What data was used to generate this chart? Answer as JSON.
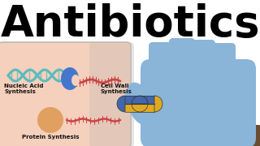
{
  "title": "Antibiotics",
  "title_fontsize": 38,
  "title_color": "#000000",
  "background_color": "#ffffff",
  "cell_bg_color": "#f5d0bc",
  "cell_border_color": "#bbbbbb",
  "label_nucleic": "Nucleic Acid\nSynthesis",
  "label_cell_wall": "Cell Wall\nSynthesis",
  "label_protein": "Protein Synthesis",
  "dna_color_top": "#5abcbc",
  "dna_color_bottom": "#cc4444",
  "enzyme_color": "#4477cc",
  "glove_color": "#8ab4d8",
  "glove_dark": "#6a94b8",
  "pill_top_color": "#4466aa",
  "pill_bottom_color": "#ddaa22",
  "sleeve_color": "#6b4c30",
  "organelle_color": "#e0a060"
}
